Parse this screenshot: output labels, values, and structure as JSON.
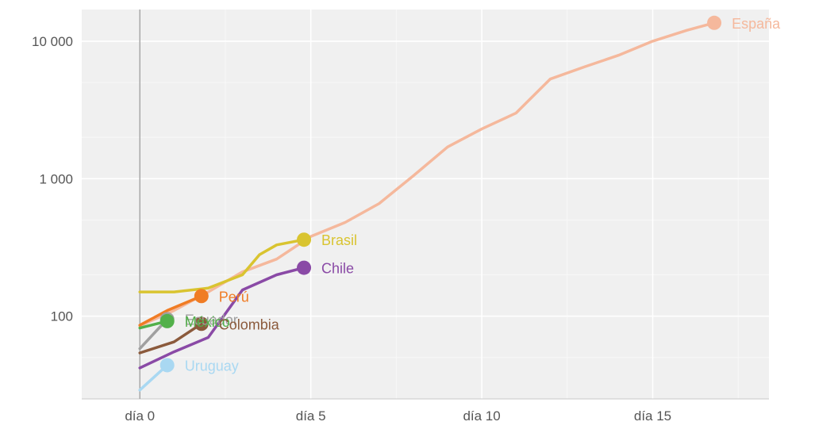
{
  "chart_data": {
    "type": "line",
    "y_scale": "log",
    "ylim": [
      25,
      17000
    ],
    "xlim": [
      -1.7,
      18.4
    ],
    "grid": true,
    "y_ticks": [
      {
        "value": 100,
        "label": "100"
      },
      {
        "value": 1000,
        "label": "1 000"
      },
      {
        "value": 10000,
        "label": "10 000"
      }
    ],
    "x_ticks": [
      {
        "value": 0,
        "label": "día 0"
      },
      {
        "value": 5,
        "label": "día 5"
      },
      {
        "value": 10,
        "label": "día 10"
      },
      {
        "value": 15,
        "label": "día 15"
      }
    ],
    "series": [
      {
        "name": "España",
        "color": "#f5b89c",
        "x": [
          0,
          1,
          2,
          3,
          4,
          5,
          6,
          7,
          8,
          9,
          10,
          11,
          12,
          13,
          14,
          15,
          16,
          16.8
        ],
        "y": [
          85,
          110,
          150,
          210,
          260,
          380,
          480,
          660,
          1050,
          1700,
          2300,
          3000,
          5300,
          6500,
          7900,
          10000,
          12000,
          13600
        ]
      },
      {
        "name": "Brasil",
        "color": "#d9c430",
        "x": [
          0,
          1,
          2,
          3,
          3.5,
          4,
          4.8
        ],
        "y": [
          150,
          150,
          160,
          200,
          280,
          330,
          360
        ]
      },
      {
        "name": "Chile",
        "color": "#8a4aa6",
        "x": [
          0,
          1,
          2,
          3,
          4,
          4.8
        ],
        "y": [
          42,
          55,
          70,
          155,
          200,
          225
        ]
      },
      {
        "name": "Perú",
        "color": "#f07c24",
        "x": [
          0,
          0.8,
          1.8
        ],
        "y": [
          86,
          110,
          140
        ]
      },
      {
        "name": "Ecuador",
        "color": "#a0a0a0",
        "x": [
          0,
          0.8
        ],
        "y": [
          58,
          95
        ]
      },
      {
        "name": "México",
        "color": "#52b04a",
        "x": [
          0,
          0.8
        ],
        "y": [
          82,
          92
        ]
      },
      {
        "name": "Colombia",
        "color": "#8b5a3c",
        "x": [
          0,
          1,
          1.8
        ],
        "y": [
          54,
          65,
          88
        ]
      },
      {
        "name": "Uruguay",
        "color": "#a9d8f2",
        "x": [
          0,
          0.8
        ],
        "y": [
          29,
          44
        ]
      }
    ]
  }
}
